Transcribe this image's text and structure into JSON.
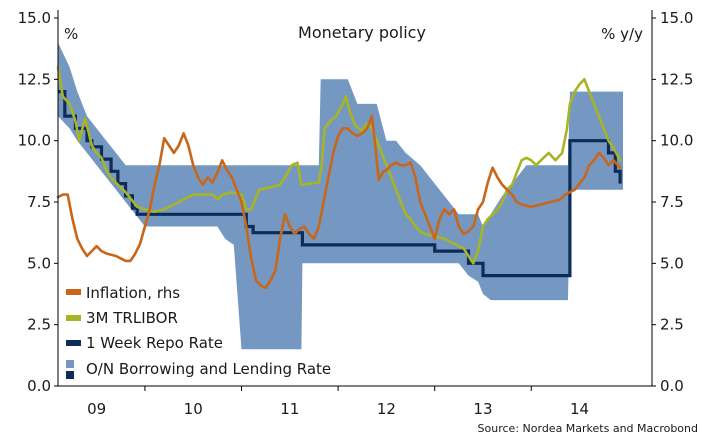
{
  "chart_data": {
    "type": "line",
    "title": "Monetary policy",
    "left_unit": "%",
    "right_unit": "% y/y",
    "source": "Source: Nordea Markets and Macrobond",
    "y_left": {
      "min": 0,
      "max": 15,
      "ticks": [
        "0.0",
        "2.5",
        "5.0",
        "7.5",
        "10.0",
        "12.5",
        "15.0"
      ]
    },
    "y_right": {
      "min": 0,
      "max": 15,
      "ticks": [
        "0.0",
        "2.5",
        "5.0",
        "7.5",
        "10.0",
        "12.5",
        "15.0"
      ]
    },
    "x_range": [
      2008.6,
      2014.75
    ],
    "x_labels": [
      {
        "label": "09",
        "x": 2009.0
      },
      {
        "label": "10",
        "x": 2010.0
      },
      {
        "label": "11",
        "x": 2011.0
      },
      {
        "label": "12",
        "x": 2012.0
      },
      {
        "label": "13",
        "x": 2013.0
      },
      {
        "label": "14",
        "x": 2014.0
      }
    ],
    "x_boundaries": [
      2009.5,
      2010.5,
      2011.5,
      2012.5,
      2013.5
    ],
    "legend": {
      "inflation": "Inflation, rhs",
      "tribor": "3M TRLIBOR",
      "repo": "1 Week Repo Rate",
      "corridor": "O/N Borrowing and Lending Rate"
    },
    "colors": {
      "inflation": "#c8661a",
      "tribor": "#a7b524",
      "repo": "#0d2c5a",
      "corridor": "#7598c2",
      "axis": "#000000"
    },
    "series": {
      "corridor": [
        [
          2008.6,
          14.0,
          11.0
        ],
        [
          2008.72,
          13.0,
          10.5
        ],
        [
          2008.8,
          12.0,
          10.0
        ],
        [
          2008.9,
          11.0,
          9.5
        ],
        [
          2009.0,
          10.5,
          9.0
        ],
        [
          2009.1,
          10.0,
          8.5
        ],
        [
          2009.2,
          9.5,
          8.0
        ],
        [
          2009.3,
          9.0,
          7.5
        ],
        [
          2009.4,
          9.0,
          7.0
        ],
        [
          2009.5,
          9.0,
          6.5
        ],
        [
          2010.0,
          9.0,
          6.5
        ],
        [
          2010.25,
          9.0,
          6.5
        ],
        [
          2010.33,
          9.0,
          6.0
        ],
        [
          2010.42,
          9.0,
          5.75
        ],
        [
          2010.5,
          9.0,
          1.5
        ],
        [
          2011.0,
          9.0,
          1.5
        ],
        [
          2011.12,
          9.0,
          1.5
        ],
        [
          2011.13,
          9.0,
          5.0
        ],
        [
          2011.3,
          9.0,
          5.0
        ],
        [
          2011.32,
          12.5,
          5.0
        ],
        [
          2011.6,
          12.5,
          5.0
        ],
        [
          2011.7,
          11.5,
          5.0
        ],
        [
          2011.8,
          11.5,
          5.0
        ],
        [
          2011.9,
          11.5,
          5.0
        ],
        [
          2012.0,
          10.0,
          5.0
        ],
        [
          2012.1,
          10.0,
          5.0
        ],
        [
          2012.2,
          9.5,
          5.0
        ],
        [
          2012.35,
          9.0,
          5.0
        ],
        [
          2012.45,
          8.5,
          5.0
        ],
        [
          2012.55,
          8.0,
          5.0
        ],
        [
          2012.65,
          7.5,
          5.0
        ],
        [
          2012.75,
          7.0,
          5.0
        ],
        [
          2012.85,
          7.0,
          4.5
        ],
        [
          2012.95,
          7.0,
          4.25
        ],
        [
          2013.0,
          6.5,
          3.75
        ],
        [
          2013.08,
          7.0,
          3.5
        ],
        [
          2013.2,
          7.75,
          3.5
        ],
        [
          2013.35,
          8.5,
          3.5
        ],
        [
          2013.45,
          9.0,
          3.5
        ],
        [
          2013.7,
          9.0,
          3.5
        ],
        [
          2013.88,
          9.0,
          3.5
        ],
        [
          2013.9,
          12.0,
          8.0
        ],
        [
          2014.45,
          12.0,
          8.0
        ]
      ],
      "repo": [
        [
          2008.6,
          12.0
        ],
        [
          2008.67,
          11.0
        ],
        [
          2008.78,
          10.5
        ],
        [
          2008.9,
          10.0
        ],
        [
          2008.95,
          9.75
        ],
        [
          2009.05,
          9.25
        ],
        [
          2009.15,
          8.75
        ],
        [
          2009.22,
          8.25
        ],
        [
          2009.3,
          7.75
        ],
        [
          2009.37,
          7.25
        ],
        [
          2009.42,
          7.0
        ],
        [
          2010.5,
          7.0
        ],
        [
          2010.55,
          6.5
        ],
        [
          2010.62,
          6.25
        ],
        [
          2011.12,
          6.25
        ],
        [
          2011.13,
          5.75
        ],
        [
          2012.4,
          5.75
        ],
        [
          2012.5,
          5.5
        ],
        [
          2012.82,
          5.5
        ],
        [
          2012.85,
          5.0
        ],
        [
          2012.99,
          5.0
        ],
        [
          2013.0,
          4.5
        ],
        [
          2013.88,
          4.5
        ],
        [
          2013.9,
          10.0
        ],
        [
          2014.2,
          10.0
        ],
        [
          2014.3,
          9.5
        ],
        [
          2014.37,
          8.75
        ],
        [
          2014.42,
          8.25
        ]
      ],
      "tribor": [
        [
          2008.6,
          13.0
        ],
        [
          2008.65,
          11.8
        ],
        [
          2008.72,
          11.5
        ],
        [
          2008.78,
          10.8
        ],
        [
          2008.82,
          10.0
        ],
        [
          2008.88,
          10.9
        ],
        [
          2008.92,
          10.3
        ],
        [
          2008.95,
          9.8
        ],
        [
          2009.0,
          9.5
        ],
        [
          2009.05,
          9.3
        ],
        [
          2009.1,
          8.8
        ],
        [
          2009.15,
          8.5
        ],
        [
          2009.22,
          8.2
        ],
        [
          2009.3,
          7.9
        ],
        [
          2009.36,
          7.6
        ],
        [
          2009.42,
          7.3
        ],
        [
          2009.5,
          7.2
        ],
        [
          2009.6,
          7.1
        ],
        [
          2009.7,
          7.2
        ],
        [
          2009.8,
          7.4
        ],
        [
          2009.9,
          7.6
        ],
        [
          2010.0,
          7.8
        ],
        [
          2010.1,
          7.8
        ],
        [
          2010.2,
          7.8
        ],
        [
          2010.25,
          7.6
        ],
        [
          2010.3,
          7.8
        ],
        [
          2010.4,
          7.9
        ],
        [
          2010.5,
          7.8
        ],
        [
          2010.55,
          7.2
        ],
        [
          2010.6,
          7.2
        ],
        [
          2010.68,
          8.0
        ],
        [
          2010.8,
          8.1
        ],
        [
          2010.9,
          8.2
        ],
        [
          2010.95,
          8.5
        ],
        [
          2011.02,
          9.0
        ],
        [
          2011.08,
          9.1
        ],
        [
          2011.12,
          8.2
        ],
        [
          2011.3,
          8.3
        ],
        [
          2011.33,
          9.0
        ],
        [
          2011.36,
          10.5
        ],
        [
          2011.42,
          10.8
        ],
        [
          2011.48,
          11.0
        ],
        [
          2011.55,
          11.5
        ],
        [
          2011.58,
          11.8
        ],
        [
          2011.62,
          11.2
        ],
        [
          2011.68,
          10.6
        ],
        [
          2011.75,
          10.4
        ],
        [
          2011.8,
          10.7
        ],
        [
          2011.85,
          10.5
        ],
        [
          2011.9,
          10.0
        ],
        [
          2011.95,
          9.5
        ],
        [
          2012.0,
          9.0
        ],
        [
          2012.05,
          8.5
        ],
        [
          2012.1,
          8.0
        ],
        [
          2012.15,
          7.5
        ],
        [
          2012.2,
          7.0
        ],
        [
          2012.25,
          6.8
        ],
        [
          2012.3,
          6.5
        ],
        [
          2012.35,
          6.3
        ],
        [
          2012.4,
          6.2
        ],
        [
          2012.5,
          6.1
        ],
        [
          2012.6,
          6.0
        ],
        [
          2012.7,
          5.8
        ],
        [
          2012.8,
          5.6
        ],
        [
          2012.85,
          5.3
        ],
        [
          2012.9,
          5.0
        ],
        [
          2012.95,
          5.5
        ],
        [
          2013.0,
          6.5
        ],
        [
          2013.05,
          6.8
        ],
        [
          2013.1,
          7.0
        ],
        [
          2013.15,
          7.2
        ],
        [
          2013.2,
          7.5
        ],
        [
          2013.25,
          8.0
        ],
        [
          2013.3,
          8.2
        ],
        [
          2013.35,
          8.7
        ],
        [
          2013.4,
          9.2
        ],
        [
          2013.45,
          9.3
        ],
        [
          2013.5,
          9.2
        ],
        [
          2013.55,
          9.0
        ],
        [
          2013.6,
          9.2
        ],
        [
          2013.68,
          9.5
        ],
        [
          2013.75,
          9.2
        ],
        [
          2013.82,
          9.5
        ],
        [
          2013.87,
          10.5
        ],
        [
          2013.9,
          11.5
        ],
        [
          2013.95,
          12.0
        ],
        [
          2014.0,
          12.3
        ],
        [
          2014.05,
          12.5
        ],
        [
          2014.1,
          12.0
        ],
        [
          2014.15,
          11.5
        ],
        [
          2014.2,
          11.0
        ],
        [
          2014.25,
          10.5
        ],
        [
          2014.3,
          10.0
        ],
        [
          2014.35,
          9.7
        ],
        [
          2014.42,
          9.2
        ]
      ],
      "inflation": [
        [
          2008.6,
          7.7
        ],
        [
          2008.65,
          7.8
        ],
        [
          2008.7,
          7.8
        ],
        [
          2008.75,
          6.8
        ],
        [
          2008.8,
          6.0
        ],
        [
          2008.85,
          5.6
        ],
        [
          2008.9,
          5.3
        ],
        [
          2008.95,
          5.5
        ],
        [
          2009.0,
          5.7
        ],
        [
          2009.05,
          5.5
        ],
        [
          2009.1,
          5.4
        ],
        [
          2009.2,
          5.3
        ],
        [
          2009.25,
          5.2
        ],
        [
          2009.3,
          5.1
        ],
        [
          2009.35,
          5.1
        ],
        [
          2009.4,
          5.4
        ],
        [
          2009.45,
          5.8
        ],
        [
          2009.5,
          6.5
        ],
        [
          2009.55,
          7.2
        ],
        [
          2009.6,
          8.2
        ],
        [
          2009.65,
          9.0
        ],
        [
          2009.7,
          10.1
        ],
        [
          2009.75,
          9.8
        ],
        [
          2009.8,
          9.5
        ],
        [
          2009.85,
          9.8
        ],
        [
          2009.9,
          10.3
        ],
        [
          2009.95,
          9.8
        ],
        [
          2010.0,
          9.0
        ],
        [
          2010.05,
          8.5
        ],
        [
          2010.1,
          8.2
        ],
        [
          2010.15,
          8.5
        ],
        [
          2010.2,
          8.3
        ],
        [
          2010.25,
          8.7
        ],
        [
          2010.3,
          9.2
        ],
        [
          2010.35,
          8.8
        ],
        [
          2010.4,
          8.5
        ],
        [
          2010.45,
          8.0
        ],
        [
          2010.5,
          7.5
        ],
        [
          2010.55,
          6.5
        ],
        [
          2010.6,
          5.2
        ],
        [
          2010.65,
          4.3
        ],
        [
          2010.7,
          4.1
        ],
        [
          2010.75,
          4.0
        ],
        [
          2010.8,
          4.3
        ],
        [
          2010.85,
          4.7
        ],
        [
          2010.9,
          6.0
        ],
        [
          2010.95,
          7.0
        ],
        [
          2011.0,
          6.5
        ],
        [
          2011.05,
          6.2
        ],
        [
          2011.1,
          6.4
        ],
        [
          2011.15,
          6.5
        ],
        [
          2011.2,
          6.2
        ],
        [
          2011.25,
          6.0
        ],
        [
          2011.3,
          6.5
        ],
        [
          2011.35,
          7.5
        ],
        [
          2011.4,
          8.5
        ],
        [
          2011.45,
          9.5
        ],
        [
          2011.5,
          10.2
        ],
        [
          2011.55,
          10.5
        ],
        [
          2011.6,
          10.5
        ],
        [
          2011.65,
          10.3
        ],
        [
          2011.7,
          10.2
        ],
        [
          2011.75,
          10.3
        ],
        [
          2011.8,
          10.5
        ],
        [
          2011.85,
          11.0
        ],
        [
          2011.88,
          10.0
        ],
        [
          2011.92,
          8.4
        ],
        [
          2011.96,
          8.7
        ],
        [
          2012.0,
          8.8
        ],
        [
          2012.05,
          9.0
        ],
        [
          2012.1,
          9.1
        ],
        [
          2012.15,
          9.0
        ],
        [
          2012.2,
          9.0
        ],
        [
          2012.25,
          9.1
        ],
        [
          2012.3,
          8.5
        ],
        [
          2012.35,
          7.5
        ],
        [
          2012.4,
          7.0
        ],
        [
          2012.45,
          6.5
        ],
        [
          2012.5,
          6.0
        ],
        [
          2012.55,
          6.8
        ],
        [
          2012.6,
          7.2
        ],
        [
          2012.65,
          7.0
        ],
        [
          2012.7,
          7.2
        ],
        [
          2012.75,
          6.5
        ],
        [
          2012.8,
          6.2
        ],
        [
          2012.85,
          6.3
        ],
        [
          2012.9,
          6.5
        ],
        [
          2012.95,
          7.2
        ],
        [
          2013.0,
          7.5
        ],
        [
          2013.05,
          8.3
        ],
        [
          2013.1,
          8.9
        ],
        [
          2013.15,
          8.5
        ],
        [
          2013.2,
          8.2
        ],
        [
          2013.25,
          8.0
        ],
        [
          2013.3,
          7.8
        ],
        [
          2013.35,
          7.5
        ],
        [
          2013.4,
          7.4
        ],
        [
          2013.5,
          7.3
        ],
        [
          2013.6,
          7.4
        ],
        [
          2013.7,
          7.5
        ],
        [
          2013.8,
          7.6
        ],
        [
          2013.85,
          7.8
        ],
        [
          2013.95,
          8.0
        ],
        [
          2014.05,
          8.5
        ],
        [
          2014.1,
          9.0
        ],
        [
          2014.15,
          9.2
        ],
        [
          2014.2,
          9.5
        ],
        [
          2014.25,
          9.3
        ],
        [
          2014.3,
          9.0
        ],
        [
          2014.35,
          9.2
        ],
        [
          2014.42,
          8.9
        ]
      ]
    }
  }
}
